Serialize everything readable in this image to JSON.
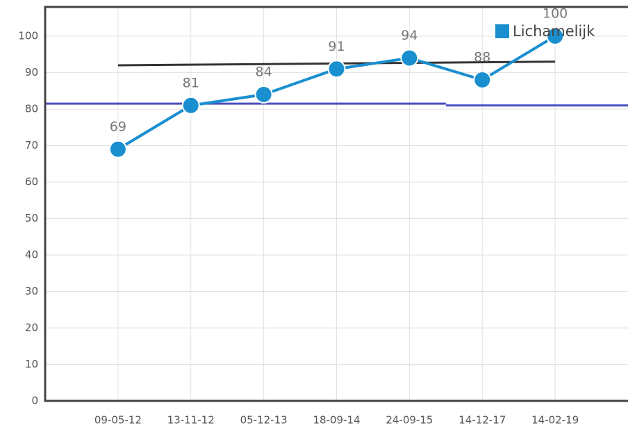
{
  "chart_data": {
    "type": "line",
    "categories": [
      "09-05-12",
      "13-11-12",
      "05-12-13",
      "18-09-14",
      "24-09-15",
      "14-12-17",
      "14-02-19"
    ],
    "series": [
      {
        "name": "Lichamelijk",
        "color": "#1a8fd0",
        "values": [
          69,
          81,
          84,
          91,
          94,
          88,
          100
        ]
      }
    ],
    "trend": {
      "color": "#333333",
      "values": [
        92,
        93
      ]
    },
    "reference": {
      "color": "#4a4ec0",
      "values": [
        81.5,
        81
      ]
    },
    "ylim": [
      0,
      108
    ],
    "yticks": [
      0,
      10,
      20,
      30,
      40,
      50,
      60,
      70,
      80,
      90,
      100
    ],
    "grid": true,
    "legend": "top-right"
  }
}
